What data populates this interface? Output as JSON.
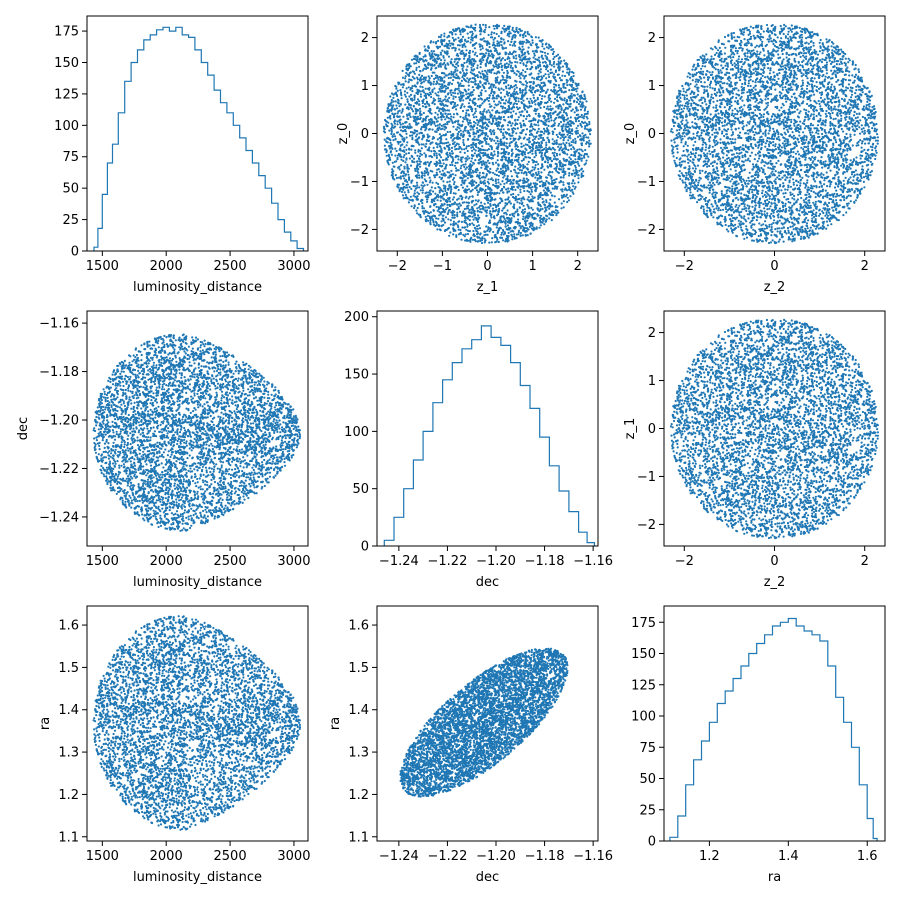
{
  "figure": {
    "title": "",
    "marker_color": "#1f77b4"
  },
  "chart_data": [
    {
      "id": "p00",
      "type": "histogram",
      "title": "",
      "xlabel": "luminosity_distance",
      "ylabel": "",
      "xlim": [
        1380,
        3110
      ],
      "ylim": [
        0,
        187
      ],
      "xticks": [
        1500,
        2000,
        2500,
        3000
      ],
      "xtick_labels": [
        "1500",
        "2000",
        "2500",
        "3000"
      ],
      "yticks": [
        0,
        25,
        50,
        75,
        100,
        125,
        150,
        175
      ],
      "ytick_labels": [
        "0",
        "25",
        "50",
        "75",
        "100",
        "125",
        "150",
        "175"
      ],
      "x": [
        1450,
        1480,
        1520,
        1560,
        1600,
        1650,
        1700,
        1750,
        1800,
        1850,
        1900,
        1950,
        2000,
        2050,
        2100,
        2150,
        2200,
        2250,
        2300,
        2350,
        2400,
        2450,
        2500,
        2550,
        2600,
        2650,
        2700,
        2750,
        2800,
        2850,
        2900,
        2950,
        3000,
        3050
      ],
      "values": [
        3,
        18,
        45,
        70,
        85,
        110,
        135,
        150,
        160,
        168,
        172,
        176,
        178,
        175,
        178,
        172,
        170,
        160,
        150,
        140,
        128,
        118,
        110,
        100,
        90,
        80,
        70,
        60,
        50,
        38,
        25,
        15,
        8,
        2
      ],
      "series": [
        {
          "name": ""
        }
      ]
    },
    {
      "id": "p01",
      "type": "scatter",
      "title": "",
      "xlabel": "z_1",
      "ylabel": "z_0",
      "xlim": [
        -2.45,
        2.45
      ],
      "ylim": [
        -2.45,
        2.45
      ],
      "xticks": [
        -2,
        -1,
        0,
        1,
        2
      ],
      "xtick_labels": [
        "−2",
        "−1",
        "0",
        "1",
        "2"
      ],
      "yticks": [
        -2,
        -1,
        0,
        1,
        2
      ],
      "ytick_labels": [
        "−2",
        "−1",
        "0",
        "1",
        "2"
      ],
      "distribution": {
        "shape": "disk",
        "center": [
          0,
          0
        ],
        "radius": 2.3
      },
      "series": [
        {
          "name": ""
        }
      ]
    },
    {
      "id": "p02",
      "type": "scatter",
      "title": "",
      "xlabel": "z_2",
      "ylabel": "z_0",
      "xlim": [
        -2.45,
        2.45
      ],
      "ylim": [
        -2.45,
        2.45
      ],
      "xticks": [
        -2,
        0,
        2
      ],
      "xtick_labels": [
        "−2",
        "0",
        "2"
      ],
      "yticks": [
        -2,
        -1,
        0,
        1,
        2
      ],
      "ytick_labels": [
        "−2",
        "−1",
        "0",
        "1",
        "2"
      ],
      "distribution": {
        "shape": "disk",
        "center": [
          0,
          0
        ],
        "radius": 2.3
      },
      "series": [
        {
          "name": ""
        }
      ]
    },
    {
      "id": "p10",
      "type": "scatter",
      "title": "",
      "xlabel": "luminosity_distance",
      "ylabel": "dec",
      "xlim": [
        1380,
        3110
      ],
      "ylim": [
        -1.252,
        -1.155
      ],
      "xticks": [
        1500,
        2000,
        2500,
        3000
      ],
      "xtick_labels": [
        "1500",
        "2000",
        "2500",
        "3000"
      ],
      "yticks": [
        -1.24,
        -1.22,
        -1.2,
        -1.18,
        -1.16
      ],
      "ytick_labels": [
        "−1.24",
        "−1.22",
        "−1.20",
        "−1.18",
        "−1.16"
      ],
      "distribution": {
        "shape": "egg",
        "center": [
          2150,
          -1.205
        ],
        "half_width_left": 720,
        "half_width_right": 900,
        "half_height": 0.041
      },
      "series": [
        {
          "name": ""
        }
      ]
    },
    {
      "id": "p11",
      "type": "histogram",
      "title": "",
      "xlabel": "dec",
      "ylabel": "",
      "xlim": [
        -1.249,
        -1.158
      ],
      "ylim": [
        0,
        205
      ],
      "xticks": [
        -1.24,
        -1.22,
        -1.2,
        -1.18,
        -1.16
      ],
      "xtick_labels": [
        "−1.24",
        "−1.22",
        "−1.20",
        "−1.18",
        "−1.16"
      ],
      "yticks": [
        0,
        50,
        100,
        150,
        200
      ],
      "ytick_labels": [
        "0",
        "50",
        "100",
        "150",
        "200"
      ],
      "x": [
        -1.244,
        -1.24,
        -1.236,
        -1.232,
        -1.228,
        -1.224,
        -1.22,
        -1.216,
        -1.212,
        -1.208,
        -1.204,
        -1.2,
        -1.196,
        -1.192,
        -1.188,
        -1.184,
        -1.18,
        -1.176,
        -1.172,
        -1.168,
        -1.164,
        -1.161
      ],
      "values": [
        5,
        25,
        50,
        75,
        100,
        125,
        145,
        160,
        172,
        180,
        192,
        182,
        175,
        160,
        140,
        120,
        95,
        70,
        48,
        30,
        12,
        3
      ],
      "series": [
        {
          "name": ""
        }
      ]
    },
    {
      "id": "p12",
      "type": "scatter",
      "title": "",
      "xlabel": "z_2",
      "ylabel": "z_1",
      "xlim": [
        -2.45,
        2.45
      ],
      "ylim": [
        -2.45,
        2.45
      ],
      "xticks": [
        -2,
        0,
        2
      ],
      "xtick_labels": [
        "−2",
        "0",
        "2"
      ],
      "yticks": [
        -2,
        -1,
        0,
        1,
        2
      ],
      "ytick_labels": [
        "−2",
        "−1",
        "0",
        "1",
        "2"
      ],
      "distribution": {
        "shape": "disk",
        "center": [
          0,
          0
        ],
        "radius": 2.3
      },
      "series": [
        {
          "name": ""
        }
      ]
    },
    {
      "id": "p20",
      "type": "scatter",
      "title": "",
      "xlabel": "luminosity_distance",
      "ylabel": "ra",
      "xlim": [
        1380,
        3110
      ],
      "ylim": [
        1.09,
        1.645
      ],
      "xticks": [
        1500,
        2000,
        2500,
        3000
      ],
      "xtick_labels": [
        "1500",
        "2000",
        "2500",
        "3000"
      ],
      "yticks": [
        1.1,
        1.2,
        1.3,
        1.4,
        1.5,
        1.6
      ],
      "ytick_labels": [
        "1.1",
        "1.2",
        "1.3",
        "1.4",
        "1.5",
        "1.6"
      ],
      "distribution": {
        "shape": "egg",
        "center": [
          2150,
          1.37
        ],
        "half_width_left": 720,
        "half_width_right": 900,
        "half_height": 0.255
      },
      "series": [
        {
          "name": ""
        }
      ]
    },
    {
      "id": "p21",
      "type": "scatter",
      "title": "",
      "xlabel": "dec",
      "ylabel": "ra",
      "xlim": [
        -1.249,
        -1.158
      ],
      "ylim": [
        1.09,
        1.645
      ],
      "xticks": [
        -1.24,
        -1.22,
        -1.2,
        -1.18,
        -1.16
      ],
      "xtick_labels": [
        "−1.24",
        "−1.22",
        "−1.20",
        "−1.18",
        "−1.16"
      ],
      "yticks": [
        1.1,
        1.2,
        1.3,
        1.4,
        1.5,
        1.6
      ],
      "ytick_labels": [
        "1.1",
        "1.2",
        "1.3",
        "1.4",
        "1.5",
        "1.6"
      ],
      "distribution": {
        "shape": "tilted-ellipse",
        "center": [
          -1.205,
          1.37
        ],
        "semi_major": 0.042,
        "semi_minor": 0.016,
        "angle_deg": 38,
        "correlation": 0.75
      },
      "series": [
        {
          "name": ""
        }
      ]
    },
    {
      "id": "p22",
      "type": "histogram",
      "title": "",
      "xlabel": "ra",
      "ylabel": "",
      "xlim": [
        1.085,
        1.645
      ],
      "ylim": [
        0,
        188
      ],
      "xticks": [
        1.2,
        1.4,
        1.6
      ],
      "xtick_labels": [
        "1.2",
        "1.4",
        "1.6"
      ],
      "yticks": [
        0,
        25,
        50,
        75,
        100,
        125,
        150,
        175
      ],
      "ytick_labels": [
        "0",
        "25",
        "50",
        "75",
        "100",
        "125",
        "150",
        "175"
      ],
      "x": [
        1.11,
        1.13,
        1.15,
        1.17,
        1.19,
        1.21,
        1.23,
        1.25,
        1.27,
        1.29,
        1.31,
        1.33,
        1.35,
        1.37,
        1.39,
        1.41,
        1.43,
        1.45,
        1.47,
        1.49,
        1.51,
        1.53,
        1.55,
        1.57,
        1.59,
        1.61,
        1.62
      ],
      "values": [
        3,
        20,
        45,
        65,
        80,
        95,
        110,
        120,
        130,
        140,
        150,
        158,
        165,
        172,
        175,
        178,
        172,
        168,
        165,
        160,
        140,
        115,
        95,
        75,
        45,
        18,
        2
      ],
      "series": [
        {
          "name": ""
        }
      ]
    }
  ]
}
